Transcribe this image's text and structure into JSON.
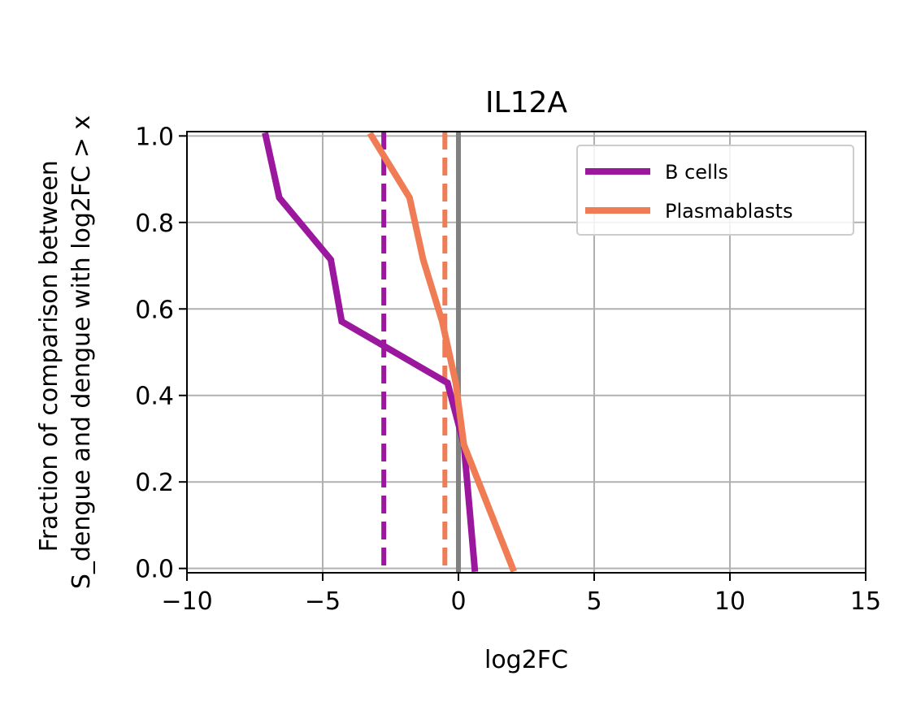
{
  "chart_data": {
    "type": "line",
    "title": "IL12A",
    "xlabel": "log2FC",
    "ylabel": [
      "Fraction of comparison between",
      "S_dengue and dengue with log2FC > x"
    ],
    "xlim": [
      -10,
      15
    ],
    "ylim": [
      -0.01,
      1.01
    ],
    "xticks": [
      -10,
      -5,
      0,
      5,
      10,
      15
    ],
    "xtick_labels": [
      "−10",
      "−5",
      "0",
      "5",
      "10",
      "15"
    ],
    "yticks": [
      0.0,
      0.2,
      0.4,
      0.6,
      0.8,
      1.0
    ],
    "ytick_labels": [
      "0.0",
      "0.2",
      "0.4",
      "0.6",
      "0.8",
      "1.0"
    ],
    "grid": true,
    "legend_position": "upper right",
    "series": [
      {
        "name": "B cells",
        "color": "#9b179e",
        "points": [
          [
            -7.1,
            1.0
          ],
          [
            -6.6,
            0.857
          ],
          [
            -4.7,
            0.714
          ],
          [
            -4.3,
            0.571
          ],
          [
            -0.4,
            0.429
          ],
          [
            0.2,
            0.286
          ],
          [
            0.4,
            0.143
          ],
          [
            0.6,
            0.0
          ]
        ],
        "median": -2.75
      },
      {
        "name": "Plasmablasts",
        "color": "#ef7c55",
        "points": [
          [
            -3.2,
            1.0
          ],
          [
            -1.8,
            0.857
          ],
          [
            -1.3,
            0.714
          ],
          [
            -0.6,
            0.571
          ],
          [
            -0.1,
            0.429
          ],
          [
            0.2,
            0.286
          ],
          [
            1.1,
            0.143
          ],
          [
            2.0,
            0.0
          ]
        ],
        "median": -0.5
      }
    ],
    "reference_line": {
      "x": 0,
      "color": "#808080"
    }
  }
}
